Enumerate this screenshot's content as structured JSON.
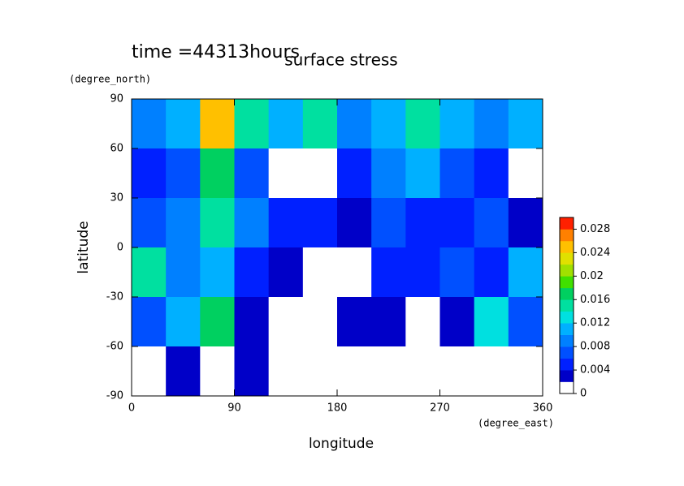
{
  "chart_data": {
    "type": "contour",
    "title": "surface stress",
    "subtitle": "time =44313hours",
    "x_label": "longitude",
    "x_unit": "(degree_east)",
    "y_label": "latitude",
    "y_unit": "(degree_north)",
    "xlim": [
      0,
      360
    ],
    "xticks": [
      0,
      90,
      180,
      270,
      360
    ],
    "ylim": [
      -90,
      90
    ],
    "yticks": [
      -90,
      -60,
      -30,
      0,
      30,
      60,
      90
    ],
    "x": [
      15,
      45,
      75,
      105,
      135,
      165,
      195,
      225,
      255,
      285,
      315,
      345
    ],
    "y": [
      75,
      45,
      15,
      -15,
      -45,
      -75
    ],
    "z": [
      [
        0.008,
        0.01,
        0.024,
        0.014,
        0.01,
        0.014,
        0.008,
        0.01,
        0.014,
        0.01,
        0.008,
        0.01
      ],
      [
        0.004,
        0.006,
        0.016,
        0.006,
        0,
        0,
        0.004,
        0.008,
        0.01,
        0.006,
        0.004,
        0
      ],
      [
        0.006,
        0.008,
        0.014,
        0.008,
        0.004,
        0.004,
        0.002,
        0.006,
        0.004,
        0.004,
        0.006,
        0.002
      ],
      [
        0.014,
        0.008,
        0.01,
        0.004,
        0.002,
        0,
        0,
        0.004,
        0.004,
        0.006,
        0.004,
        0.01
      ],
      [
        0.006,
        0.01,
        0.016,
        0.002,
        0,
        0,
        0.002,
        0.002,
        0,
        0.002,
        0.012,
        0.006
      ],
      [
        0,
        0.002,
        0,
        0.002,
        0,
        0,
        0,
        0,
        0,
        0,
        0,
        0
      ]
    ],
    "colorbar": {
      "lim": [
        0,
        0.03
      ],
      "ticks": [
        0,
        0.004,
        0.008,
        0.012,
        0.016,
        0.02,
        0.024,
        0.028
      ],
      "colors": [
        "#ffffff",
        "#0000c8",
        "#0020ff",
        "#0050ff",
        "#0080ff",
        "#00b0ff",
        "#00e0e0",
        "#00e0a0",
        "#00d060",
        "#40e000",
        "#a0e000",
        "#e0e000",
        "#ffc000",
        "#ff8000",
        "#ff2000"
      ]
    }
  }
}
